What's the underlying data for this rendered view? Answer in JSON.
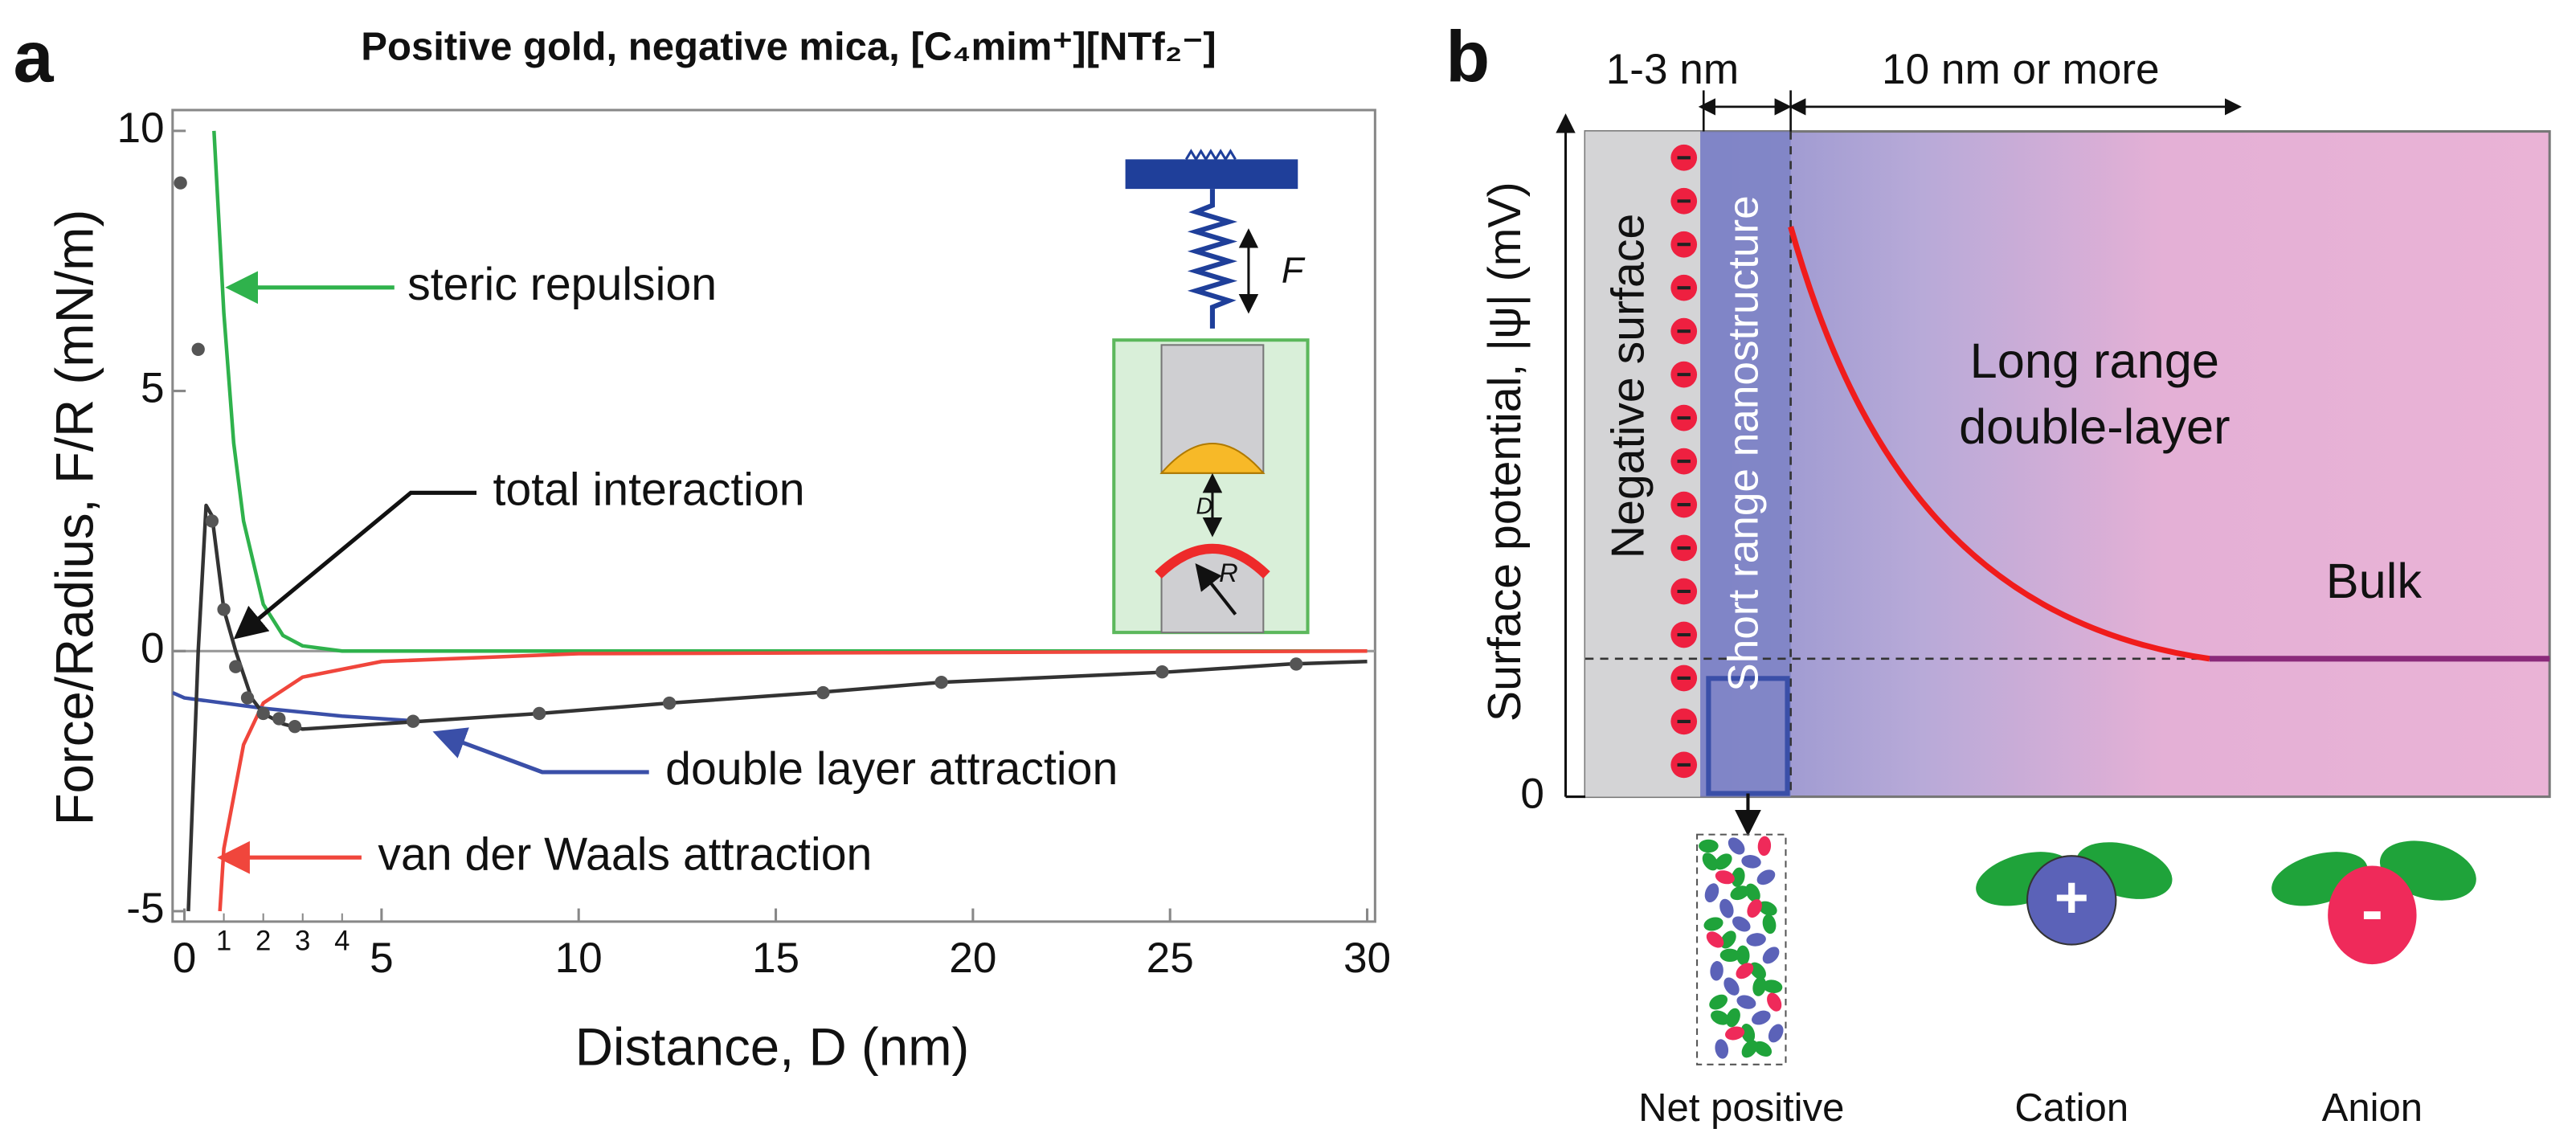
{
  "panel_labels": [
    "a",
    "b"
  ],
  "chart_data": {
    "type": "line",
    "title": "Positive gold, negative mica, [C₄mim⁺][NTf₂⁻]",
    "x_label": "Distance, D (nm)",
    "y_label": "Force/Radius, F/R (mN/m)",
    "xlim": [
      -0.3,
      30.2
    ],
    "ylim": [
      -5.2,
      10.4
    ],
    "xticks": [
      0,
      5,
      10,
      15,
      20,
      25,
      30
    ],
    "xticks_minor": [
      1,
      2,
      3,
      4
    ],
    "yticks": [
      -5,
      0,
      5,
      10
    ],
    "grid": false,
    "series": [
      {
        "name": "steric repulsion",
        "color": "#2fb24c",
        "x": [
          0.75,
          1,
          1.25,
          1.5,
          2,
          2.5,
          3,
          4,
          30
        ],
        "values": [
          10,
          6.5,
          4,
          2.5,
          0.9,
          0.3,
          0.1,
          0,
          0
        ]
      },
      {
        "name": "van der Waals attraction",
        "color": "#f0463c",
        "x": [
          0.9,
          1,
          1.5,
          2,
          3,
          5,
          10,
          30
        ],
        "values": [
          -5,
          -3.8,
          -1.8,
          -1,
          -0.5,
          -0.2,
          -0.05,
          0
        ]
      },
      {
        "name": "double layer attraction",
        "color": "#3a4fa8",
        "x": [
          -0.3,
          0,
          2,
          4,
          6
        ],
        "values": [
          -0.8,
          -0.9,
          -1.1,
          -1.25,
          -1.35
        ]
      },
      {
        "name": "total interaction",
        "color": "#333333",
        "x": [
          0.1,
          0.35,
          0.55,
          0.7,
          1,
          1.3,
          1.7,
          2,
          2.5,
          3,
          5,
          9,
          12.3,
          16,
          19.2,
          25,
          28,
          30
        ],
        "values": [
          -5,
          0,
          2.8,
          2.6,
          0.8,
          0,
          -0.9,
          -1.2,
          -1.4,
          -1.5,
          -1.4,
          -1.2,
          -1,
          -0.8,
          -0.6,
          -0.4,
          -0.25,
          -0.2
        ]
      },
      {
        "color": "#555555",
        "marker": "circle",
        "x": [
          -0.1,
          0.35,
          0.7,
          1,
          1.3,
          1.6,
          2,
          2.4,
          2.8,
          5.8,
          9,
          12.3,
          16.2,
          19.2,
          24.8,
          28.2
        ],
        "values": [
          9,
          5.8,
          2.5,
          0.8,
          -0.3,
          -0.9,
          -1.2,
          -1.3,
          -1.45,
          -1.35,
          -1.2,
          -1,
          -0.8,
          -0.6,
          -0.4,
          -0.25
        ]
      }
    ]
  },
  "inset": {
    "force": "F",
    "distance": "D",
    "radius": "R"
  },
  "schematic": {
    "y_label": "Surface potential, |ψ| (mV)",
    "y_zero": "0",
    "width_short": "1-3 nm",
    "width_long": "10 nm or more",
    "negative_surface": "Negative surface",
    "short_range": "Short range nanostructure",
    "long_range": [
      "Long range",
      "double-layer"
    ],
    "bulk": "Bulk",
    "legend": [
      "Net positive",
      "Cation",
      "Anion"
    ],
    "cation_sign": "+",
    "anion_sign": "-"
  }
}
